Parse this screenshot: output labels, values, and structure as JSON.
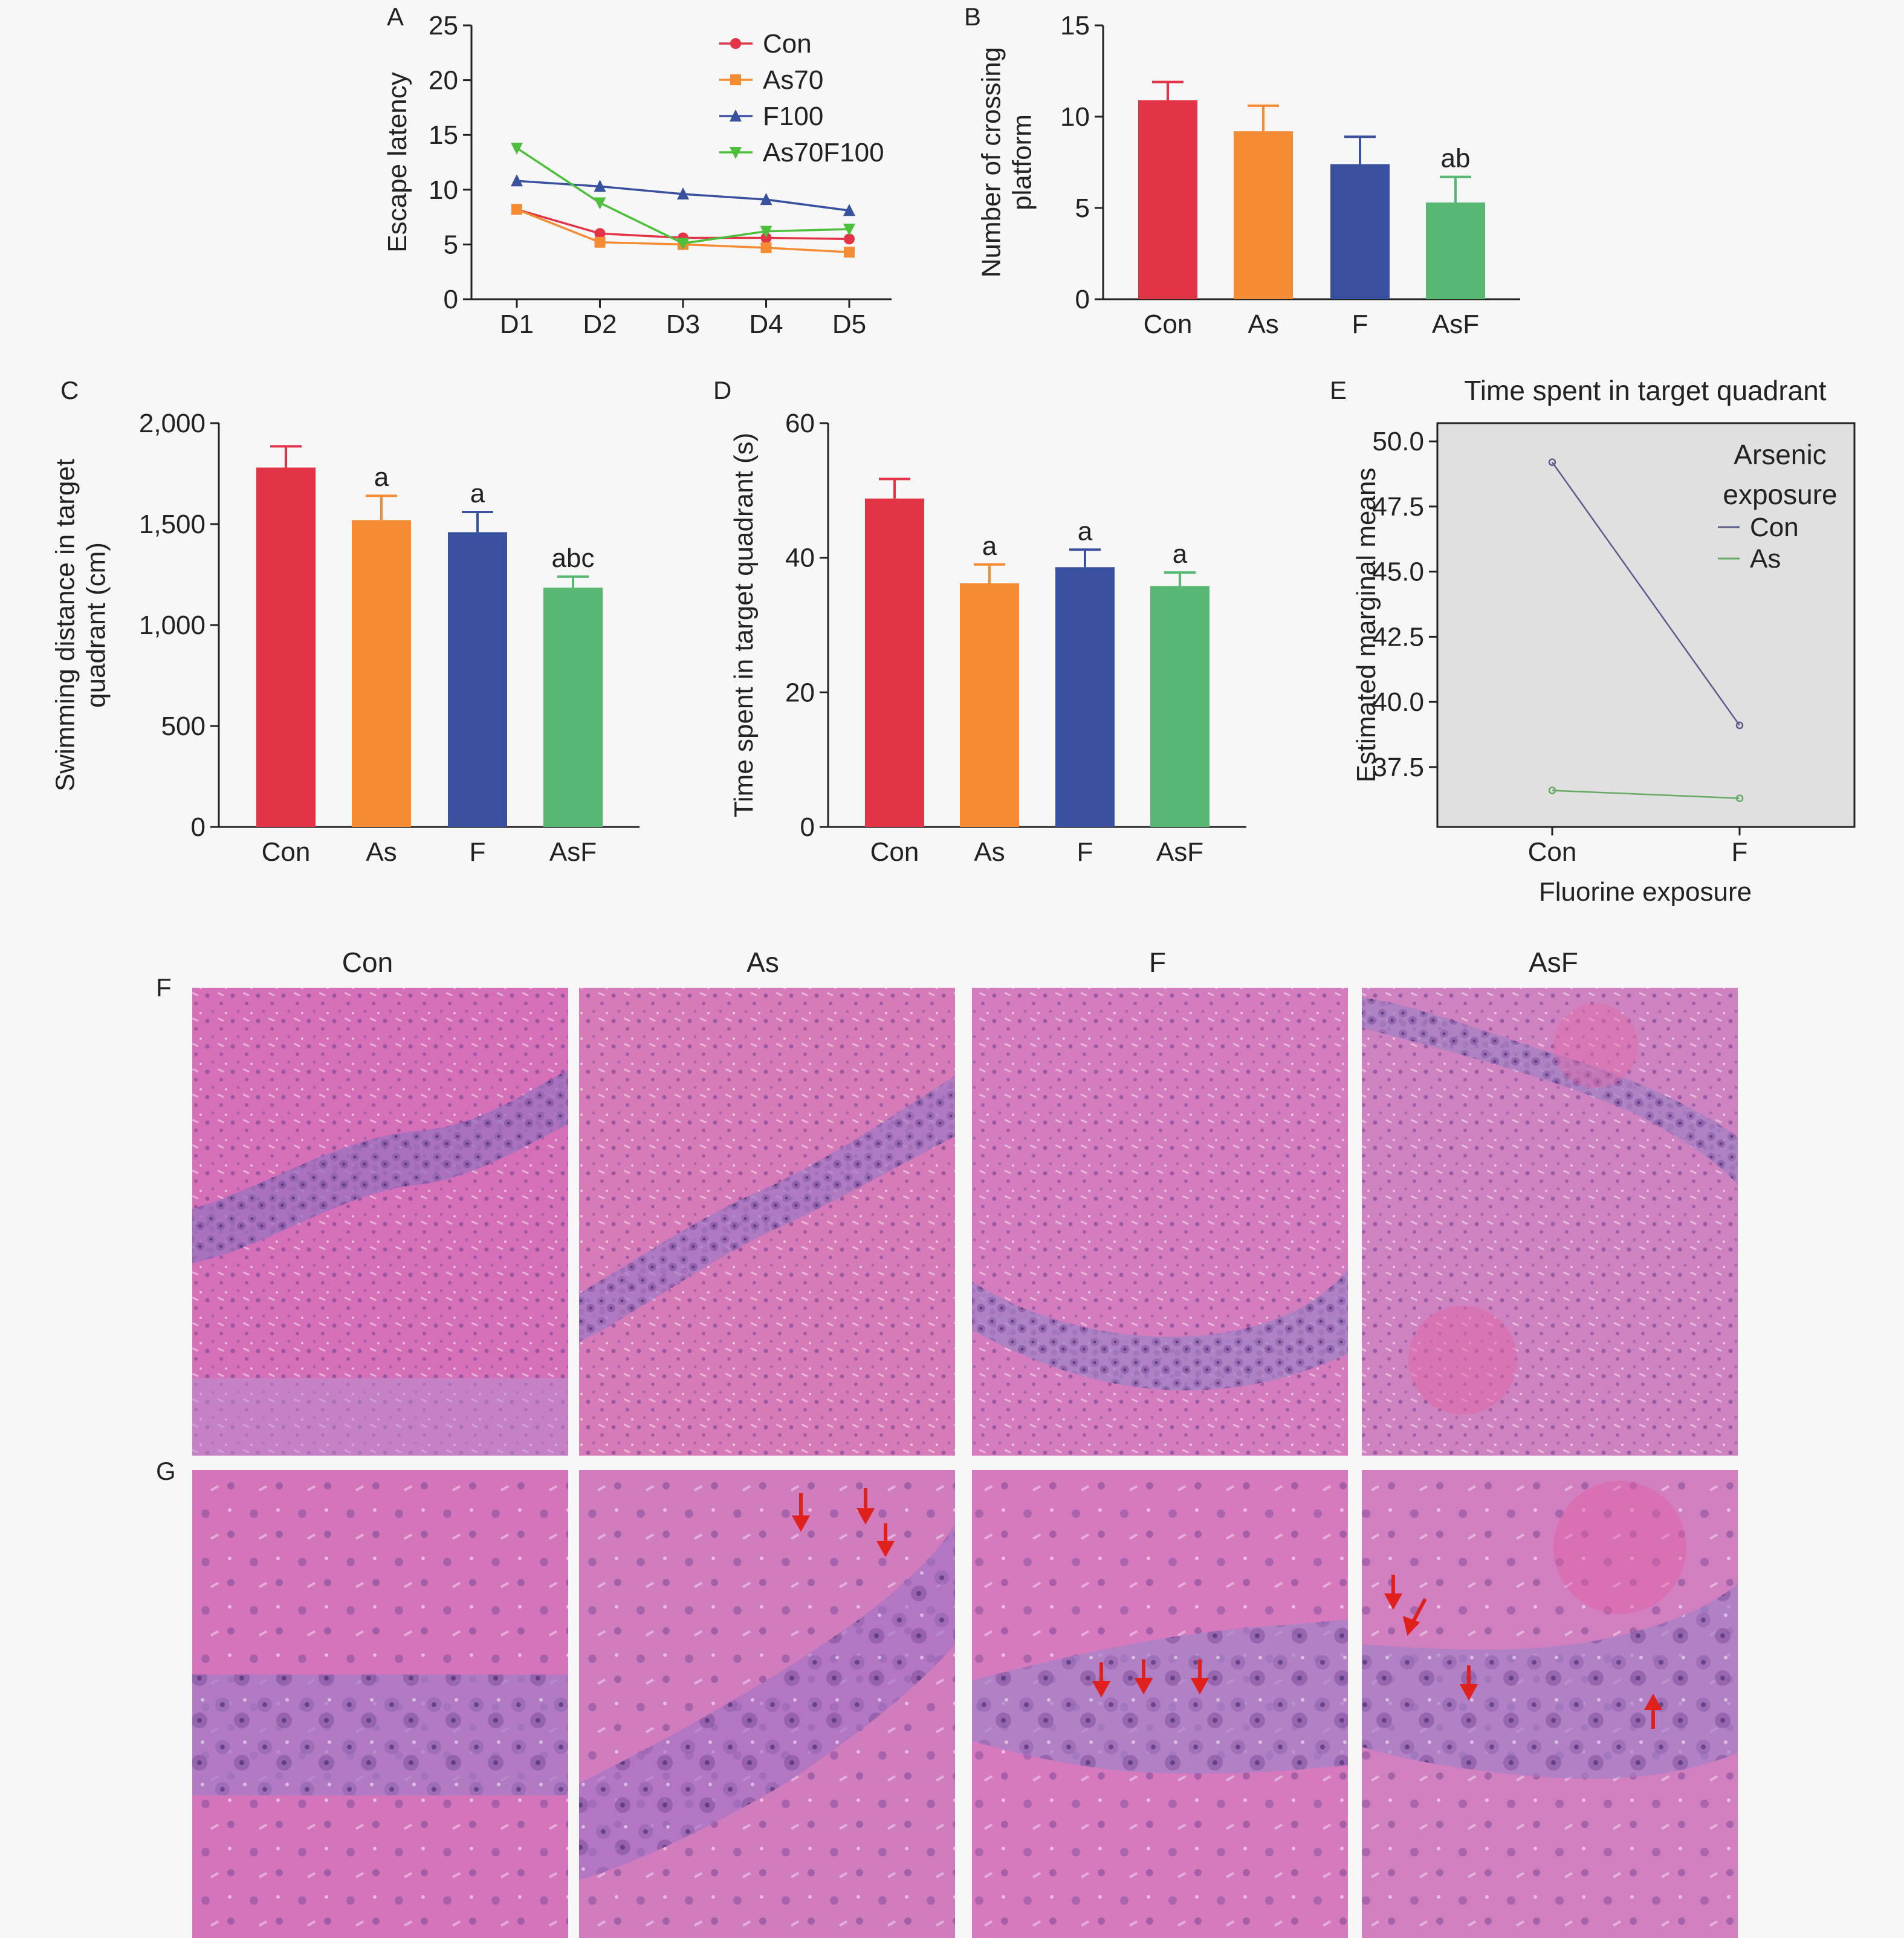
{
  "colors": {
    "con": "#e23347",
    "as": "#f58b32",
    "f": "#3a51a0",
    "asf": "#56b872",
    "as70f100": "#4cc03a",
    "con_line": "#5b5b8a",
    "as_line": "#66aa66",
    "axis": "#222222",
    "panel_e_bg": "#e0e0e0"
  },
  "chart_data": [
    {
      "panel": "A",
      "type": "line",
      "title": "",
      "xlabel": "",
      "ylabel": "Escape latency",
      "categories": [
        "D1",
        "D2",
        "D3",
        "D4",
        "D5"
      ],
      "ylim": [
        0,
        25
      ],
      "yticks": [
        "0",
        "5",
        "10",
        "15",
        "20",
        "25"
      ],
      "series": [
        {
          "name": "Con",
          "marker": "circle",
          "color": "#e23347",
          "values": [
            8.2,
            6.0,
            5.6,
            5.6,
            5.5
          ]
        },
        {
          "name": "As70",
          "marker": "square",
          "color": "#f58b32",
          "values": [
            8.2,
            5.2,
            5.0,
            4.7,
            4.3
          ]
        },
        {
          "name": "F100",
          "marker": "triangle-up",
          "color": "#3a51a0",
          "values": [
            10.8,
            10.3,
            9.6,
            9.1,
            8.1
          ]
        },
        {
          "name": "As70F100",
          "marker": "triangle-down",
          "color": "#4cc03a",
          "values": [
            13.8,
            8.8,
            5.1,
            6.2,
            6.4
          ]
        }
      ],
      "legend_position": "top-right"
    },
    {
      "panel": "B",
      "type": "bar",
      "title": "",
      "xlabel": "",
      "ylabel": "Number of crossing platform",
      "ylabel_lines": [
        "Number of crossing",
        "platform"
      ],
      "categories": [
        "Con",
        "As",
        "F",
        "AsF"
      ],
      "values": [
        10.9,
        9.2,
        7.4,
        5.3
      ],
      "errors": [
        1.0,
        1.4,
        1.5,
        1.4
      ],
      "annotations": [
        "",
        "",
        "",
        "ab"
      ],
      "ylim": [
        0,
        15
      ],
      "yticks": [
        "0",
        "5",
        "10",
        "15"
      ]
    },
    {
      "panel": "C",
      "type": "bar",
      "title": "",
      "xlabel": "",
      "ylabel": "Swimming distance in target quadrant (cm)",
      "ylabel_lines": [
        "Swimming distance in target",
        "quadrant (cm)"
      ],
      "categories": [
        "Con",
        "As",
        "F",
        "AsF"
      ],
      "values": [
        1780,
        1520,
        1460,
        1185
      ],
      "errors": [
        105,
        120,
        100,
        55
      ],
      "annotations": [
        "",
        "a",
        "a",
        "abc"
      ],
      "ylim": [
        0,
        2000
      ],
      "yticks": [
        "0",
        "500",
        "1,000",
        "1,500",
        "2,000"
      ]
    },
    {
      "panel": "D",
      "type": "bar",
      "title": "",
      "xlabel": "",
      "ylabel": "Time spent in target quadrant (s)",
      "categories": [
        "Con",
        "As",
        "F",
        "AsF"
      ],
      "values": [
        48.8,
        36.2,
        38.6,
        35.8
      ],
      "errors": [
        2.9,
        2.8,
        2.6,
        2.0
      ],
      "annotations": [
        "",
        "a",
        "a",
        "a"
      ],
      "ylim": [
        0,
        60
      ],
      "yticks": [
        "0",
        "20",
        "40",
        "60"
      ]
    },
    {
      "panel": "E",
      "type": "line",
      "title": "Time spent in target quadrant",
      "xlabel": "Fluorine exposure",
      "ylabel": "Estimated marginal means",
      "categories": [
        "Con",
        "F"
      ],
      "ylim": [
        35.2,
        50.7
      ],
      "yticks": [
        "37.5",
        "40.0",
        "42.5",
        "45.0",
        "47.5",
        "50.0"
      ],
      "ytick_values": [
        37.5,
        40.0,
        42.5,
        45.0,
        47.5,
        50.0
      ],
      "legend_title": "Arsenic exposure",
      "legend_title_lines": [
        "Arsenic",
        "exposure"
      ],
      "series": [
        {
          "name": "Con",
          "color": "#5b5b8a",
          "values": [
            49.2,
            39.1
          ]
        },
        {
          "name": "As",
          "color": "#66aa66",
          "values": [
            36.6,
            36.3
          ]
        }
      ],
      "legend_position": "top-right"
    }
  ],
  "panels": {
    "A": "A",
    "B": "B",
    "C": "C",
    "D": "D",
    "E": "E",
    "F": "F",
    "G": "G"
  },
  "histology": {
    "column_titles": [
      "Con",
      "As",
      "F",
      "AsF"
    ],
    "row_labels": [
      "F",
      "G"
    ]
  }
}
